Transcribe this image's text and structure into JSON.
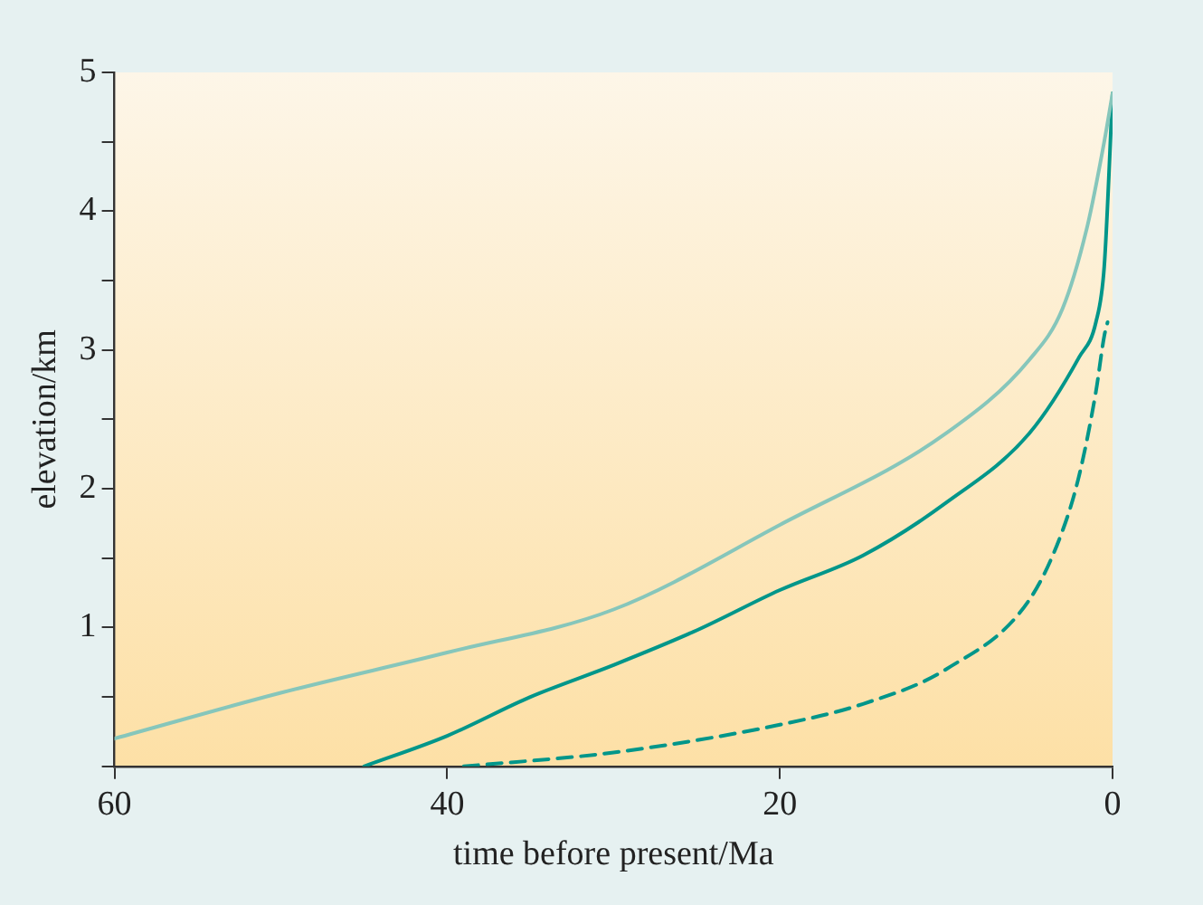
{
  "chart_data": {
    "type": "line",
    "xlabel": "time before present/Ma",
    "ylabel": "elevation/km",
    "xlim": [
      60,
      0
    ],
    "xticks": [
      60,
      40,
      20,
      0
    ],
    "ylim": [
      0,
      5
    ],
    "yticks": [
      {
        "value": 0,
        "label": null
      },
      {
        "value": 0.5,
        "label": null
      },
      1,
      {
        "value": 1.5,
        "label": null
      },
      2,
      {
        "value": 2.5,
        "label": null
      },
      3,
      {
        "value": 3.5,
        "label": null
      },
      4,
      {
        "value": 4.5,
        "label": null
      },
      5
    ],
    "grid": false,
    "legend": false,
    "marker": "none",
    "series": [
      {
        "color": "#86c6bb",
        "line_style": "solid",
        "x": [
          60,
          50,
          40,
          30,
          20,
          10,
          5,
          3,
          1.5,
          0.5,
          0
        ],
        "values": [
          0.2,
          0.53,
          0.82,
          1.13,
          1.74,
          2.4,
          2.93,
          3.3,
          3.9,
          4.5,
          4.85
        ]
      },
      {
        "color": "#00968a",
        "line_style": "solid",
        "x": [
          45,
          40,
          35,
          30,
          25,
          20,
          15,
          10,
          5,
          2,
          1,
          0.5,
          0
        ],
        "values": [
          0,
          0.22,
          0.5,
          0.73,
          0.98,
          1.27,
          1.52,
          1.9,
          2.4,
          2.95,
          3.2,
          3.6,
          4.85
        ]
      },
      {
        "color": "#00968a",
        "line_style": "dashed",
        "x": [
          39,
          30,
          20,
          15,
          10,
          5,
          3,
          2,
          1,
          0.5,
          0.3
        ],
        "values": [
          0,
          0.1,
          0.3,
          0.45,
          0.7,
          1.2,
          1.7,
          2.1,
          2.7,
          3.1,
          3.2
        ]
      }
    ]
  }
}
